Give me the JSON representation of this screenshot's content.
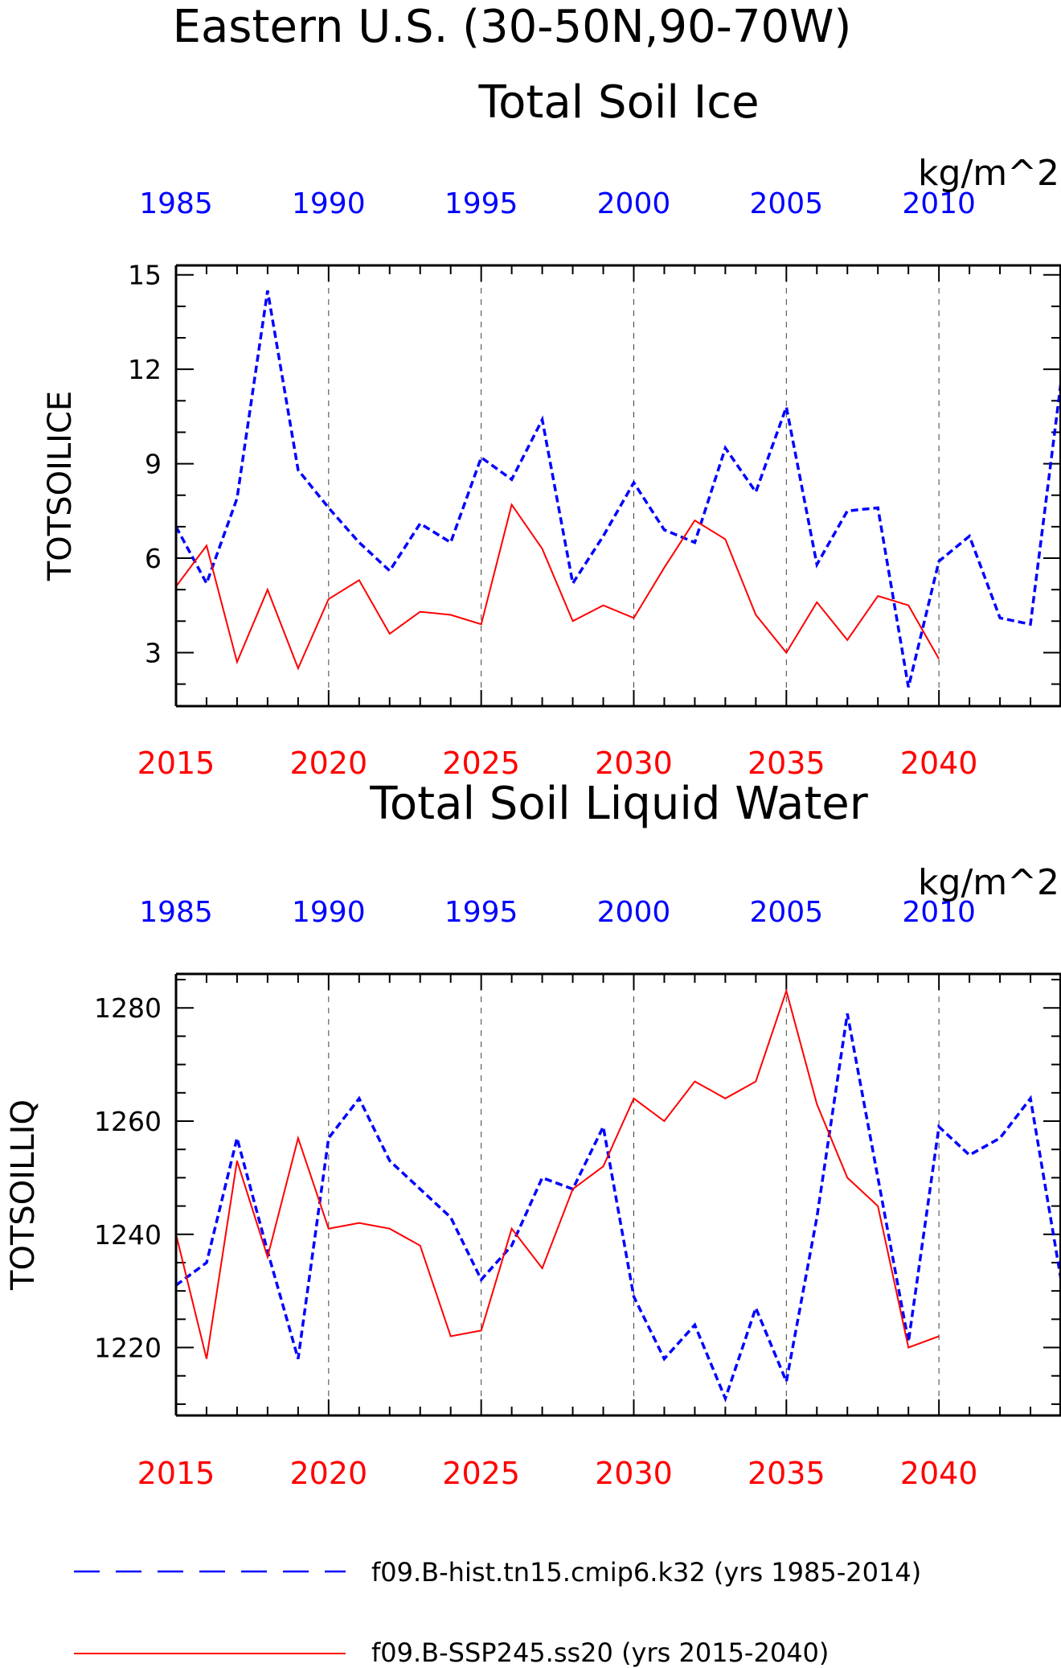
{
  "titles": {
    "line1": "Eastern U.S. (30-50N,90-70W)",
    "panel1": "Total Soil Ice",
    "panel2": "Total Soil Liquid Water"
  },
  "colors": {
    "hist": "#0000ff",
    "ssp": "#ff0000",
    "axis": "#000000"
  },
  "chart_data": [
    {
      "type": "line",
      "title": "Total Soil Ice",
      "ylabel": "TOTSOILICE",
      "units": "kg/m^2",
      "ylim": [
        1.3,
        15.3
      ],
      "yticks": [
        3,
        6,
        9,
        12,
        15
      ],
      "x_bottom_label_years": [
        2015,
        2020,
        2025,
        2030,
        2035,
        2040
      ],
      "x_top_label_years": [
        1985,
        1990,
        1995,
        2000,
        2005,
        2010
      ],
      "grid": "vertical-dashed",
      "series": [
        {
          "name": "f09.B-hist.tn15.cmip6.k32 (yrs 1985-2014)",
          "style": "dashed",
          "x": [
            1985,
            1986,
            1987,
            1988,
            1989,
            1990,
            1991,
            1992,
            1993,
            1994,
            1995,
            1996,
            1997,
            1998,
            1999,
            2000,
            2001,
            2002,
            2003,
            2004,
            2005,
            2006,
            2007,
            2008,
            2009,
            2010,
            2011,
            2012,
            2013,
            2014
          ],
          "values": [
            7.0,
            5.2,
            7.9,
            14.5,
            8.8,
            7.6,
            6.5,
            5.6,
            7.1,
            6.5,
            9.2,
            8.5,
            10.4,
            5.2,
            6.7,
            8.4,
            6.9,
            6.5,
            9.5,
            8.1,
            10.8,
            5.8,
            7.5,
            7.6,
            1.9,
            5.9,
            6.7,
            4.1,
            3.9,
            11.6
          ]
        },
        {
          "name": "f09.B-SSP245.ss20 (yrs 2015-2040)",
          "style": "solid",
          "x": [
            2015,
            2016,
            2017,
            2018,
            2019,
            2020,
            2021,
            2022,
            2023,
            2024,
            2025,
            2026,
            2027,
            2028,
            2029,
            2030,
            2031,
            2032,
            2033,
            2034,
            2035,
            2036,
            2037,
            2038,
            2039,
            2040
          ],
          "values": [
            5.1,
            6.4,
            2.7,
            5.0,
            2.5,
            4.7,
            5.3,
            3.6,
            4.3,
            4.2,
            3.9,
            7.7,
            6.3,
            4.0,
            4.5,
            4.1,
            5.7,
            7.2,
            6.6,
            4.2,
            3.0,
            4.6,
            3.4,
            4.8,
            4.5,
            2.8
          ]
        }
      ]
    },
    {
      "type": "line",
      "title": "Total Soil Liquid Water",
      "ylabel": "TOTSOILLIQ",
      "units": "kg/m^2",
      "ylim": [
        1208,
        1286
      ],
      "yticks": [
        1220,
        1240,
        1260,
        1280
      ],
      "x_bottom_label_years": [
        2015,
        2020,
        2025,
        2030,
        2035,
        2040
      ],
      "x_top_label_years": [
        1985,
        1990,
        1995,
        2000,
        2005,
        2010
      ],
      "grid": "vertical-dashed",
      "series": [
        {
          "name": "f09.B-hist.tn15.cmip6.k32 (yrs 1985-2014)",
          "style": "dashed",
          "x": [
            1985,
            1986,
            1987,
            1988,
            1989,
            1990,
            1991,
            1992,
            1993,
            1994,
            1995,
            1996,
            1997,
            1998,
            1999,
            2000,
            2001,
            2002,
            2003,
            2004,
            2005,
            2006,
            2007,
            2008,
            2009,
            2010,
            2011,
            2012,
            2013,
            2014
          ],
          "values": [
            1231,
            1235,
            1257,
            1237,
            1218,
            1257,
            1264,
            1253,
            1248,
            1243,
            1232,
            1238,
            1250,
            1248,
            1259,
            1229,
            1218,
            1224,
            1211,
            1227,
            1214,
            1243,
            1279,
            1250,
            1221,
            1259,
            1254,
            1257,
            1264,
            1232
          ]
        },
        {
          "name": "f09.B-SSP245.ss20 (yrs 2015-2040)",
          "style": "solid",
          "x": [
            2015,
            2016,
            2017,
            2018,
            2019,
            2020,
            2021,
            2022,
            2023,
            2024,
            2025,
            2026,
            2027,
            2028,
            2029,
            2030,
            2031,
            2032,
            2033,
            2034,
            2035,
            2036,
            2037,
            2038,
            2039,
            2040
          ],
          "values": [
            1240,
            1218,
            1253,
            1236,
            1257,
            1241,
            1242,
            1241,
            1238,
            1222,
            1223,
            1241,
            1234,
            1248,
            1252,
            1264,
            1260,
            1267,
            1264,
            1267,
            1283,
            1263,
            1250,
            1245,
            1220,
            1222
          ]
        }
      ]
    }
  ],
  "legend": {
    "items": [
      {
        "label": "f09.B-hist.tn15.cmip6.k32 (yrs 1985-2014)",
        "style": "dashed",
        "color": "#0000ff"
      },
      {
        "label": "f09.B-SSP245.ss20 (yrs 2015-2040)",
        "style": "solid",
        "color": "#ff0000"
      }
    ]
  }
}
